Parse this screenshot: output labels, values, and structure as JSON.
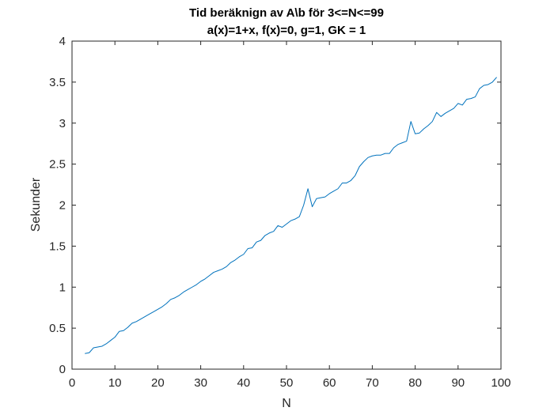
{
  "chart_data": {
    "type": "line",
    "title": "Tid beräknign av A\\b för 3<=N<=99",
    "subtitle": "a(x)=1+x, f(x)=0, g=1, GK = 1",
    "xlabel": "N",
    "ylabel": "Sekunder",
    "xlim": [
      0,
      100
    ],
    "ylim": [
      0,
      4
    ],
    "xticks": [
      0,
      10,
      20,
      30,
      40,
      50,
      60,
      70,
      80,
      90,
      100
    ],
    "yticks": [
      0,
      0.5,
      1,
      1.5,
      2,
      2.5,
      3,
      3.5,
      4
    ],
    "xtick_labels": [
      "0",
      "10",
      "20",
      "30",
      "40",
      "50",
      "60",
      "70",
      "80",
      "90",
      "100"
    ],
    "ytick_labels": [
      "0",
      "0.5",
      "1",
      "1.5",
      "2",
      "2.5",
      "3",
      "3.5",
      "4"
    ],
    "grid": false,
    "box": true,
    "line_color": "#0072BD",
    "series": [
      {
        "x": [
          3,
          4,
          5,
          6,
          7,
          8,
          9,
          10,
          11,
          12,
          13,
          14,
          15,
          16,
          17,
          18,
          19,
          20,
          21,
          22,
          23,
          24,
          25,
          26,
          27,
          28,
          29,
          30,
          31,
          32,
          33,
          34,
          35,
          36,
          37,
          38,
          39,
          40,
          41,
          42,
          43,
          44,
          45,
          46,
          47,
          48,
          49,
          50,
          51,
          52,
          53,
          54,
          55,
          56,
          57,
          58,
          59,
          60,
          61,
          62,
          63,
          64,
          65,
          66,
          67,
          68,
          69,
          70,
          71,
          72,
          73,
          74,
          75,
          76,
          77,
          78,
          79,
          80,
          81,
          82,
          83,
          84,
          85,
          86,
          87,
          88,
          89,
          90,
          91,
          92,
          93,
          94,
          95,
          96,
          97,
          98,
          99
        ],
        "values": [
          0.19,
          0.2,
          0.26,
          0.27,
          0.28,
          0.31,
          0.35,
          0.39,
          0.46,
          0.47,
          0.51,
          0.56,
          0.58,
          0.61,
          0.64,
          0.67,
          0.7,
          0.73,
          0.76,
          0.8,
          0.85,
          0.87,
          0.9,
          0.94,
          0.97,
          1.0,
          1.03,
          1.07,
          1.1,
          1.14,
          1.18,
          1.2,
          1.22,
          1.25,
          1.3,
          1.33,
          1.37,
          1.4,
          1.47,
          1.48,
          1.55,
          1.57,
          1.63,
          1.66,
          1.68,
          1.75,
          1.73,
          1.77,
          1.81,
          1.83,
          1.86,
          2.0,
          2.2,
          1.98,
          2.08,
          2.09,
          2.1,
          2.14,
          2.17,
          2.2,
          2.27,
          2.27,
          2.3,
          2.36,
          2.47,
          2.53,
          2.58,
          2.6,
          2.61,
          2.61,
          2.63,
          2.63,
          2.7,
          2.74,
          2.76,
          2.78,
          3.02,
          2.87,
          2.88,
          2.93,
          2.97,
          3.02,
          3.13,
          3.08,
          3.12,
          3.15,
          3.18,
          3.24,
          3.22,
          3.29,
          3.3,
          3.32,
          3.42,
          3.46,
          3.47,
          3.5,
          3.56
        ]
      }
    ]
  }
}
